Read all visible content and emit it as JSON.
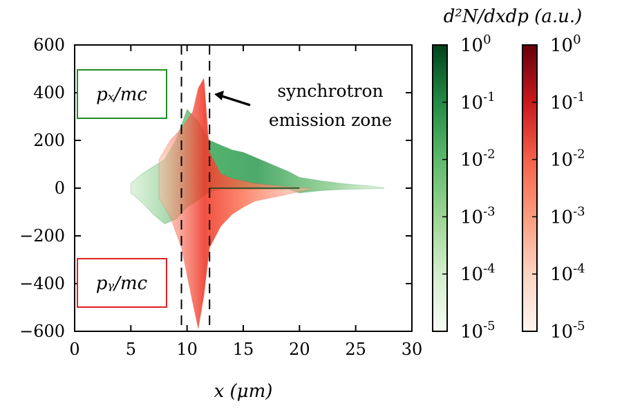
{
  "chart_data": {
    "type": "heatmap",
    "title": "",
    "xlabel": "x (μm)",
    "ylabel": "",
    "xlim": [
      0,
      30
    ],
    "ylim": [
      -600,
      600
    ],
    "x_ticks": [
      0,
      5,
      10,
      15,
      20,
      25,
      30
    ],
    "y_ticks": [
      600,
      400,
      200,
      0,
      -200,
      -400,
      -600
    ],
    "y_tick_labels": [
      "600",
      "400",
      "200",
      "0",
      "−200",
      "−400",
      "−600"
    ],
    "dashed_lines_x": [
      9.5,
      12
    ],
    "series": [
      {
        "name": "px/mc",
        "label": "pₓ/mc",
        "color": "#1a8a3c",
        "box_color": "#228b22",
        "envelope": [
          {
            "x": 5.0,
            "lo": -20,
            "hi": 20
          },
          {
            "x": 6.0,
            "lo": -60,
            "hi": 60
          },
          {
            "x": 7.0,
            "lo": -110,
            "hi": 90
          },
          {
            "x": 8.0,
            "lo": -150,
            "hi": 120
          },
          {
            "x": 9.0,
            "lo": -130,
            "hi": 200
          },
          {
            "x": 10.0,
            "lo": -80,
            "hi": 330
          },
          {
            "x": 11.0,
            "lo": -50,
            "hi": 280
          },
          {
            "x": 12.0,
            "lo": -15,
            "hi": 200
          },
          {
            "x": 13.0,
            "lo": -5,
            "hi": 180
          },
          {
            "x": 14.0,
            "lo": -5,
            "hi": 160
          },
          {
            "x": 15.0,
            "lo": -5,
            "hi": 150
          },
          {
            "x": 16.0,
            "lo": -5,
            "hi": 130
          },
          {
            "x": 17.0,
            "lo": -5,
            "hi": 110
          },
          {
            "x": 18.0,
            "lo": -5,
            "hi": 90
          },
          {
            "x": 19.0,
            "lo": -5,
            "hi": 70
          },
          {
            "x": 20.0,
            "lo": -20,
            "hi": 45
          },
          {
            "x": 22.0,
            "lo": -10,
            "hi": 30
          },
          {
            "x": 24.0,
            "lo": -5,
            "hi": 18
          },
          {
            "x": 26.0,
            "lo": -3,
            "hi": 10
          },
          {
            "x": 27.5,
            "lo": -1,
            "hi": 2
          }
        ]
      },
      {
        "name": "py/mc",
        "label": "pᵧ/mc",
        "color": "#e8402a",
        "box_color": "#e02020",
        "envelope": [
          {
            "x": 7.5,
            "lo": -40,
            "hi": 120
          },
          {
            "x": 8.5,
            "lo": -120,
            "hi": 200
          },
          {
            "x": 9.5,
            "lo": -250,
            "hi": 250
          },
          {
            "x": 10.5,
            "lo": -480,
            "hi": 320
          },
          {
            "x": 11.0,
            "lo": -590,
            "hi": 420
          },
          {
            "x": 11.5,
            "lo": -450,
            "hi": 460
          },
          {
            "x": 12.0,
            "lo": -250,
            "hi": 150
          },
          {
            "x": 13.0,
            "lo": -160,
            "hi": 60
          },
          {
            "x": 14.0,
            "lo": -110,
            "hi": 40
          },
          {
            "x": 15.0,
            "lo": -80,
            "hi": 30
          },
          {
            "x": 16.0,
            "lo": -55,
            "hi": 20
          },
          {
            "x": 17.0,
            "lo": -45,
            "hi": 15
          },
          {
            "x": 18.0,
            "lo": -35,
            "hi": 10
          },
          {
            "x": 19.0,
            "lo": -25,
            "hi": 5
          },
          {
            "x": 20.0,
            "lo": -15,
            "hi": 2
          },
          {
            "x": 21.0,
            "lo": -5,
            "hi": 0
          }
        ]
      }
    ],
    "colorbars": [
      {
        "name": "green",
        "cmap": "Greens",
        "tick_exponents": [
          "0",
          "-1",
          "-2",
          "-3",
          "-4",
          "-5"
        ]
      },
      {
        "name": "red",
        "cmap": "Reds",
        "tick_exponents": [
          "0",
          "-1",
          "-2",
          "-3",
          "-4",
          "-5"
        ]
      }
    ],
    "colorbar_base": "10",
    "colorbar_title": "d²N/dxdp (a.u.)",
    "annotation": {
      "lines": [
        "synchrotron",
        "emission zone"
      ],
      "arrow_to": {
        "x": 12.0,
        "y": 390
      }
    }
  },
  "colors": {
    "green_dark": "#00441b",
    "green_mid": "#238b45",
    "green_light": "#e5f5e0",
    "red_dark": "#67000d",
    "red_mid": "#ef3b2c",
    "red_light": "#fff5f0"
  }
}
